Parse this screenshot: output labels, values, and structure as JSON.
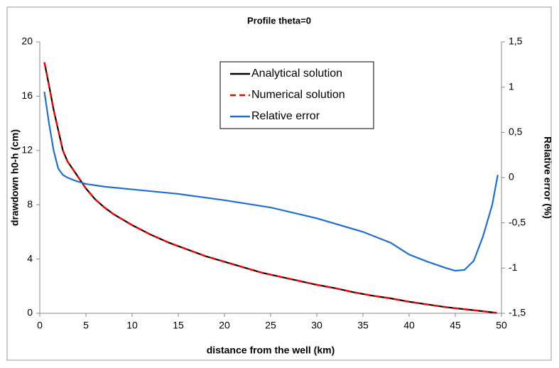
{
  "chart_data": {
    "type": "line",
    "title": "Profile theta=0",
    "x_label": "distance from the well (km)",
    "y_label": "drawdown h0-h (cm)",
    "y2_label": "Relative error (%)",
    "xlim": [
      0,
      50
    ],
    "xticks": [
      0,
      5,
      10,
      15,
      20,
      25,
      30,
      35,
      40,
      45,
      50
    ],
    "ylim": [
      0,
      20
    ],
    "yticks": [
      0,
      4,
      8,
      12,
      16,
      20
    ],
    "y2lim": [
      -1.5,
      1.5
    ],
    "y2ticks": [
      {
        "value": -1.5,
        "label": "-1,5"
      },
      -1,
      {
        "value": -0.5,
        "label": "-0,5"
      },
      0,
      {
        "value": 0.5,
        "label": "0,5"
      },
      1,
      {
        "value": 1.5,
        "label": "1,5"
      }
    ],
    "legend": "top-center",
    "series": [
      {
        "name": "Analytical solution",
        "color": "#000000",
        "dash": false,
        "x": [
          0.5,
          1,
          1.5,
          2,
          2.5,
          3,
          4,
          5,
          6,
          7,
          8,
          9,
          10,
          12,
          14,
          16,
          18,
          20,
          22,
          24,
          26,
          28,
          30,
          32,
          34,
          36,
          38,
          40,
          42,
          44,
          46,
          48,
          49.5
        ],
        "values": [
          18.5,
          16.8,
          15,
          13.5,
          12,
          11.2,
          10.2,
          9.2,
          8.4,
          7.8,
          7.3,
          6.9,
          6.5,
          5.8,
          5.2,
          4.7,
          4.2,
          3.8,
          3.4,
          3.0,
          2.7,
          2.4,
          2.1,
          1.85,
          1.55,
          1.3,
          1.1,
          0.85,
          0.65,
          0.45,
          0.3,
          0.15,
          0.03
        ]
      },
      {
        "name": "Numerical solution",
        "color": "#ff0000",
        "dash": true,
        "x": [
          0.5,
          1,
          1.5,
          2,
          2.5,
          3,
          4,
          5,
          6,
          7,
          8,
          9,
          10,
          12,
          14,
          16,
          18,
          20,
          22,
          24,
          26,
          28,
          30,
          32,
          34,
          36,
          38,
          40,
          42,
          44,
          46,
          48,
          49.5
        ],
        "values": [
          18.5,
          16.8,
          15,
          13.5,
          12,
          11.2,
          10.2,
          9.2,
          8.4,
          7.8,
          7.3,
          6.9,
          6.5,
          5.8,
          5.2,
          4.7,
          4.2,
          3.8,
          3.4,
          3.0,
          2.7,
          2.4,
          2.1,
          1.85,
          1.55,
          1.3,
          1.1,
          0.85,
          0.65,
          0.45,
          0.3,
          0.15,
          0.03
        ]
      },
      {
        "name": "Relative error",
        "color": "#1f6fd0",
        "dash": false,
        "axis": "y2",
        "x": [
          0.5,
          1,
          1.5,
          2,
          2.5,
          3,
          4,
          5,
          7,
          10,
          15,
          20,
          25,
          30,
          35,
          38,
          40,
          42,
          44,
          45,
          46,
          47,
          48,
          49,
          49.6
        ],
        "values": [
          0.95,
          0.6,
          0.3,
          0.1,
          0.03,
          0,
          -0.04,
          -0.07,
          -0.1,
          -0.13,
          -0.18,
          -0.25,
          -0.33,
          -0.45,
          -0.6,
          -0.72,
          -0.85,
          -0.93,
          -1.0,
          -1.03,
          -1.02,
          -0.92,
          -0.65,
          -0.3,
          0.03
        ]
      }
    ]
  }
}
